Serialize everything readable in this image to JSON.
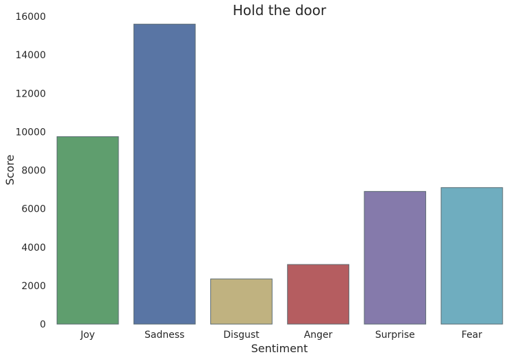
{
  "chart_data": {
    "type": "bar",
    "title": "Hold the door",
    "xlabel": "Sentiment",
    "ylabel": "Score",
    "categories": [
      "Joy",
      "Sadness",
      "Disgust",
      "Anger",
      "Surprise",
      "Fear"
    ],
    "values": [
      9750,
      15600,
      2350,
      3100,
      6900,
      7100
    ],
    "colors": [
      "#5f9e6e",
      "#5975a4",
      "#c0b280",
      "#b55d60",
      "#857aab",
      "#6fadbf"
    ],
    "ylim": [
      0,
      16000
    ],
    "yticks": [
      0,
      2000,
      4000,
      6000,
      8000,
      10000,
      12000,
      14000,
      16000
    ],
    "grid": false,
    "legend": false
  }
}
